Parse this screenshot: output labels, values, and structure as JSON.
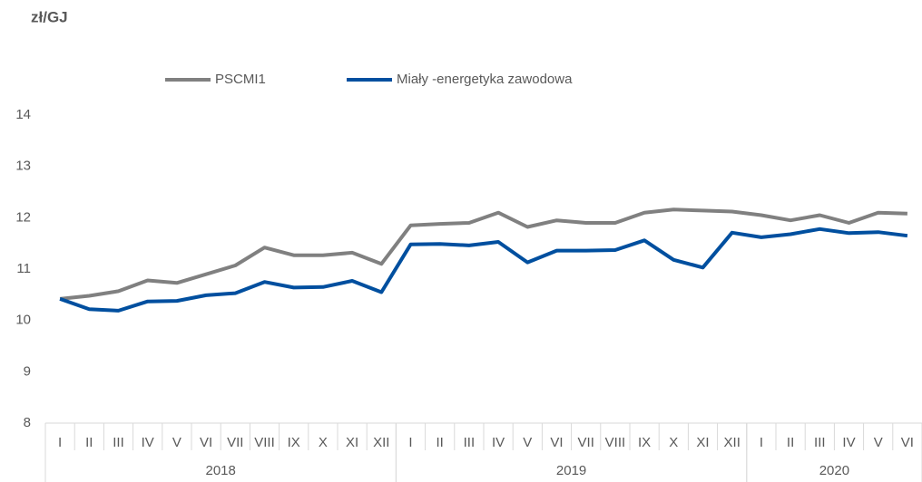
{
  "chart_data": {
    "type": "line",
    "y_label": "zł/GJ",
    "categories": [
      "I",
      "II",
      "III",
      "IV",
      "V",
      "VI",
      "VII",
      "VIII",
      "IX",
      "X",
      "XI",
      "XII",
      "I",
      "II",
      "III",
      "IV",
      "V",
      "VI",
      "VII",
      "VIII",
      "IX",
      "X",
      "XI",
      "XII",
      "I",
      "II",
      "III",
      "IV",
      "V",
      "VI"
    ],
    "groups": [
      {
        "label": "2018",
        "span": 12
      },
      {
        "label": "2019",
        "span": 12
      },
      {
        "label": "2020",
        "span": 6
      }
    ],
    "series": [
      {
        "name": "PSCMI1",
        "color": "#808080",
        "values": [
          10.42,
          10.48,
          10.57,
          10.78,
          10.73,
          10.9,
          11.07,
          11.42,
          11.27,
          11.27,
          11.32,
          11.1,
          11.85,
          11.88,
          11.9,
          12.1,
          11.82,
          11.95,
          11.9,
          11.9,
          12.1,
          12.16,
          12.14,
          12.12,
          12.05,
          11.95,
          12.05,
          11.9,
          12.1,
          12.08
        ]
      },
      {
        "name": "Miały -energetyka zawodowa",
        "color": "#004f9f",
        "values": [
          10.42,
          10.22,
          10.19,
          10.37,
          10.38,
          10.49,
          10.53,
          10.75,
          10.64,
          10.65,
          10.77,
          10.55,
          11.48,
          11.49,
          11.46,
          11.53,
          11.13,
          11.36,
          11.36,
          11.37,
          11.56,
          11.18,
          11.03,
          11.71,
          11.62,
          11.68,
          11.78,
          11.7,
          11.72,
          11.65
        ]
      }
    ],
    "ylim": [
      8,
      14
    ],
    "yticks": [
      8,
      9,
      10,
      11,
      12,
      13,
      14
    ],
    "grid": false
  }
}
